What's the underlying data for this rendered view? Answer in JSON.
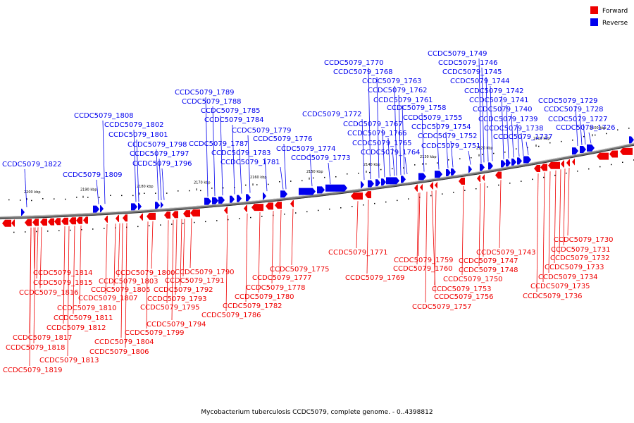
{
  "legend": {
    "forward_label": "Forward",
    "reverse_label": "Reverse",
    "forward_color": "#ee0000",
    "reverse_color": "#0000ee"
  },
  "caption": "Mycobacterium tuberculosis CCDC5079, complete genome. - 0..4398812",
  "kbp_ticks": [
    "2200 kbp",
    "2190 kbp",
    "2180 kbp",
    "2170 kbp",
    "2160 kbp",
    "2150 kbp",
    "2140 kbp",
    "2130 kbp",
    "2120 kbp",
    "2110 kbp",
    "2100 kbp"
  ],
  "reverse_labels": [
    "CCDC5079_1822",
    "CCDC5079_1809",
    "CCDC5079_1808",
    "CCDC5079_1802",
    "CCDC5079_1801",
    "CCDC5079_1798",
    "CCDC5079_1797",
    "CCDC5079_1796",
    "CCDC5079_1789",
    "CCDC5079_1788",
    "CCDC5079_1785",
    "CCDC5079_1784",
    "CCDC5079_1787",
    "CCDC5079_1779",
    "CCDC5079_1783",
    "CCDC5079_1781",
    "CCDC5079_1776",
    "CCDC5079_1774",
    "CCDC5079_1773",
    "CCDC5079_1772",
    "CCDC5079_1770",
    "CCDC5079_1768",
    "CCDC5079_1767",
    "CCDC5079_1766",
    "CCDC5079_1765",
    "CCDC5079_1764",
    "CCDC5079_1763",
    "CCDC5079_1762",
    "CCDC5079_1761",
    "CCDC5079_1758",
    "CCDC5079_1755",
    "CCDC5079_1754",
    "CCDC5079_1752",
    "CCDC5079_1751",
    "CCDC5079_1749",
    "CCDC5079_1746",
    "CCDC5079_1745",
    "CCDC5079_1744",
    "CCDC5079_1742",
    "CCDC5079_1741",
    "CCDC5079_1740",
    "CCDC5079_1739",
    "CCDC5079_1738",
    "CCDC5079_1737",
    "CCDC5079_1729",
    "CCDC5079_1728",
    "CCDC5079_1727",
    "CCDC5079_1726"
  ],
  "forward_labels": [
    "CCDC5079_1814",
    "CCDC5079_1815",
    "CCDC5079_1816",
    "CCDC5079_1810",
    "CCDC5079_1811",
    "CCDC5079_1812",
    "CCDC5079_1817",
    "CCDC5079_1818",
    "CCDC5079_1813",
    "CCDC5079_1819",
    "CCDC5079_1800",
    "CCDC5079_1803",
    "CCDC5079_1805",
    "CCDC5079_1807",
    "CCDC5079_1804",
    "CCDC5079_1806",
    "CCDC5079_1799",
    "CCDC5079_1790",
    "CCDC5079_1791",
    "CCDC5079_1792",
    "CCDC5079_1793",
    "CCDC5079_1795",
    "CCDC5079_1794",
    "CCDC5079_1786",
    "CCDC5079_1782",
    "CCDC5079_1780",
    "CCDC5079_1778",
    "CCDC5079_1777",
    "CCDC5079_1775",
    "CCDC5079_1771",
    "CCDC5079_1769",
    "CCDC5079_1759",
    "CCDC5079_1760",
    "CCDC5079_1756",
    "CCDC5079_1757",
    "CCDC5079_1753",
    "CCDC5079_1750",
    "CCDC5079_1748",
    "CCDC5079_1747",
    "CCDC5079_1743",
    "CCDC5079_1730",
    "CCDC5079_1731",
    "CCDC5079_1732",
    "CCDC5079_1733",
    "CCDC5079_1734",
    "CCDC5079_1735",
    "CCDC5079_1736"
  ]
}
